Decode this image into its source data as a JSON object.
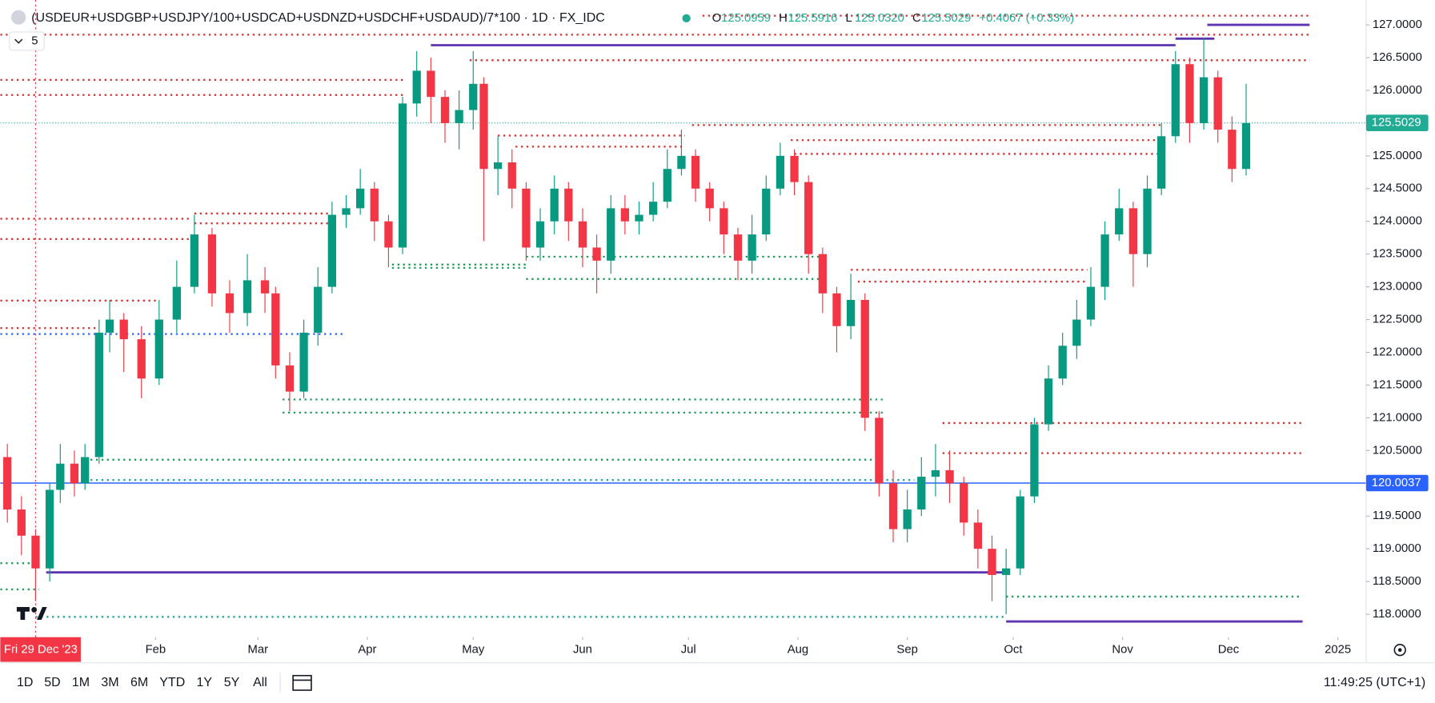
{
  "header": {
    "title": "(USDEUR+USDGBP+USDJPY/100+USDCAD+USDNZD+USDCHF+USDAUD)/7*100 · 1D · FX_IDC",
    "indicator": "5",
    "ohlc": [
      {
        "label": "O",
        "value": "125.0959"
      },
      {
        "label": "H",
        "value": "125.5916"
      },
      {
        "label": "L",
        "value": "125.0320"
      },
      {
        "label": "C",
        "value": "125.5029"
      }
    ],
    "change": "+0.4067 (+0.33%)"
  },
  "chart_data": {
    "type": "candlestick",
    "x": [
      -8,
      -4,
      0,
      4,
      7,
      11,
      14,
      18,
      21,
      25,
      30,
      35,
      40,
      45,
      50,
      55,
      60,
      65,
      68,
      72,
      76,
      80,
      84,
      88,
      92,
      96,
      100,
      104,
      108,
      112,
      116,
      120,
      124,
      127,
      131,
      135,
      139,
      143,
      147,
      151,
      155,
      159,
      163,
      167,
      171,
      175,
      179,
      183,
      187,
      191,
      195,
      199,
      203,
      207,
      211,
      215,
      219,
      223,
      227,
      231,
      235,
      239,
      243,
      247,
      251,
      255,
      259,
      263,
      267,
      271,
      275,
      279,
      283,
      287,
      291,
      295,
      299,
      303,
      307,
      311,
      315,
      319,
      323,
      327,
      331,
      335,
      339,
      343
    ],
    "open": [
      120.4,
      119.6,
      119.2,
      118.7,
      119.9,
      120.3,
      120.0,
      120.4,
      122.3,
      122.5,
      122.2,
      121.6,
      122.5,
      123.0,
      123.8,
      122.9,
      122.6,
      123.1,
      122.9,
      121.8,
      121.4,
      122.3,
      123.0,
      124.1,
      124.2,
      124.5,
      124.0,
      123.6,
      125.8,
      126.3,
      125.9,
      125.5,
      125.7,
      126.1,
      124.8,
      124.9,
      124.5,
      123.6,
      124.0,
      124.5,
      124.0,
      123.6,
      123.4,
      124.2,
      124.0,
      124.1,
      124.3,
      124.8,
      125.0,
      124.5,
      124.2,
      123.8,
      123.4,
      123.8,
      124.5,
      125.0,
      124.6,
      123.5,
      122.9,
      122.4,
      122.8,
      121.0,
      120.0,
      119.3,
      119.6,
      120.1,
      120.2,
      120.0,
      119.4,
      119.0,
      118.6,
      118.7,
      119.8,
      120.9,
      121.6,
      122.1,
      122.5,
      123.0,
      123.8,
      124.2,
      123.5,
      124.5,
      125.3,
      126.4,
      125.5,
      126.2,
      125.4,
      124.8
    ],
    "high": [
      120.6,
      119.8,
      119.3,
      120.0,
      120.6,
      120.5,
      120.6,
      122.5,
      122.8,
      122.6,
      122.4,
      122.8,
      123.4,
      124.1,
      123.9,
      123.1,
      123.5,
      123.3,
      123.0,
      122.0,
      122.5,
      123.3,
      124.3,
      124.4,
      124.8,
      124.6,
      124.1,
      125.9,
      126.6,
      126.5,
      126.0,
      126.0,
      126.6,
      126.2,
      125.3,
      125.1,
      124.6,
      124.2,
      124.7,
      124.6,
      124.2,
      123.8,
      124.4,
      124.4,
      124.3,
      124.6,
      125.1,
      125.4,
      125.1,
      124.6,
      124.3,
      123.9,
      124.1,
      124.7,
      125.2,
      125.1,
      124.7,
      123.6,
      123.0,
      123.2,
      122.9,
      121.1,
      120.2,
      119.9,
      120.4,
      120.6,
      120.5,
      120.1,
      119.6,
      119.2,
      119.0,
      119.9,
      121.0,
      121.8,
      122.3,
      122.8,
      123.3,
      124.0,
      124.5,
      124.3,
      124.7,
      125.5,
      126.6,
      126.5,
      126.8,
      126.3,
      125.6,
      126.1
    ],
    "low": [
      119.4,
      118.9,
      118.2,
      118.5,
      119.7,
      119.8,
      119.9,
      120.3,
      122.0,
      121.7,
      121.3,
      121.5,
      122.3,
      122.9,
      122.7,
      122.3,
      122.4,
      122.6,
      121.6,
      121.1,
      121.3,
      122.1,
      122.9,
      123.9,
      124.1,
      123.7,
      123.3,
      123.5,
      125.6,
      125.5,
      125.2,
      125.1,
      125.4,
      123.7,
      124.4,
      124.2,
      123.4,
      123.4,
      123.8,
      123.7,
      123.3,
      122.9,
      123.2,
      123.8,
      123.8,
      124.0,
      124.2,
      124.7,
      124.3,
      124.0,
      123.5,
      123.1,
      123.2,
      123.7,
      124.4,
      124.4,
      123.2,
      122.6,
      122.0,
      122.2,
      120.8,
      119.8,
      119.1,
      119.1,
      119.5,
      119.8,
      119.7,
      119.2,
      118.7,
      118.2,
      118.0,
      118.6,
      119.7,
      120.8,
      121.5,
      121.9,
      122.4,
      122.8,
      123.7,
      123.0,
      123.3,
      124.4,
      125.2,
      125.2,
      125.4,
      125.2,
      124.6,
      124.7
    ],
    "close": [
      119.6,
      119.2,
      118.7,
      119.9,
      120.3,
      120.0,
      120.4,
      122.3,
      122.5,
      122.2,
      121.6,
      122.5,
      123.0,
      123.8,
      122.9,
      122.6,
      123.1,
      122.9,
      121.8,
      121.4,
      122.3,
      123.0,
      124.1,
      124.2,
      124.5,
      124.0,
      123.6,
      125.8,
      126.3,
      125.9,
      125.5,
      125.7,
      126.1,
      124.8,
      124.9,
      124.5,
      123.6,
      124.0,
      124.5,
      124.0,
      123.6,
      123.4,
      124.2,
      124.0,
      124.1,
      124.3,
      124.8,
      125.0,
      124.5,
      124.2,
      123.8,
      123.4,
      123.8,
      124.5,
      125.0,
      124.6,
      123.5,
      122.9,
      122.4,
      122.8,
      121.0,
      120.0,
      119.3,
      119.6,
      120.1,
      120.2,
      120.0,
      119.4,
      119.0,
      118.6,
      118.7,
      119.8,
      120.9,
      121.6,
      122.1,
      122.5,
      123.0,
      123.8,
      124.2,
      123.5,
      124.5,
      125.3,
      126.4,
      125.5,
      126.2,
      125.4,
      124.8,
      125.5
    ],
    "up_color": "#089981",
    "down_color": "#f23645",
    "xlim": [
      -10,
      377
    ],
    "ylim": [
      117.65,
      127.38
    ],
    "xticks": [
      {
        "value": 34,
        "label": "Feb"
      },
      {
        "value": 63,
        "label": "Mar"
      },
      {
        "value": 94,
        "label": "Apr"
      },
      {
        "value": 124,
        "label": "May"
      },
      {
        "value": 155,
        "label": "Jun"
      },
      {
        "value": 185,
        "label": "Jul"
      },
      {
        "value": 216,
        "label": "Aug"
      },
      {
        "value": 247,
        "label": "Sep"
      },
      {
        "value": 277,
        "label": "Oct"
      },
      {
        "value": 308,
        "label": "Nov"
      },
      {
        "value": 338,
        "label": "Dec"
      },
      {
        "value": 369,
        "label": "2025"
      }
    ],
    "yticks": [
      {
        "value": 118,
        "label": "118.0000"
      },
      {
        "value": 118.5,
        "label": "118.5000"
      },
      {
        "value": 119,
        "label": "119.0000"
      },
      {
        "value": 119.5,
        "label": "119.5000"
      },
      {
        "value": 120,
        "label": "120.0000"
      },
      {
        "value": 120.5,
        "label": "120.5000"
      },
      {
        "value": 121,
        "label": "121.0000"
      },
      {
        "value": 121.5,
        "label": "121.5000"
      },
      {
        "value": 122,
        "label": "122.0000"
      },
      {
        "value": 122.5,
        "label": "122.5000"
      },
      {
        "value": 123,
        "label": "123.0000"
      },
      {
        "value": 123.5,
        "label": "123.5000"
      },
      {
        "value": 124,
        "label": "124.0000"
      },
      {
        "value": 124.5,
        "label": "124.5000"
      },
      {
        "value": 125,
        "label": "125.0000"
      },
      {
        "value": 125.5,
        "label": "125.5000"
      },
      {
        "value": 126,
        "label": "126.0000"
      },
      {
        "value": 126.5,
        "label": "126.5000"
      },
      {
        "value": 127,
        "label": "127.0000"
      }
    ],
    "grid": false,
    "levels": [
      {
        "color": "#d32f2f",
        "style": "dotted",
        "lines": [
          [
            127.14,
            189,
            361
          ],
          [
            126.85,
            -10,
            361
          ],
          [
            126.46,
            123,
            361
          ],
          [
            126.16,
            -10,
            105
          ],
          [
            125.93,
            -10,
            105
          ],
          [
            125.47,
            186,
            319
          ],
          [
            125.31,
            131,
            184
          ],
          [
            125.24,
            214,
            319
          ],
          [
            125.14,
            136,
            184
          ],
          [
            125.03,
            215,
            319
          ],
          [
            124.12,
            45,
            83
          ],
          [
            124.04,
            -10,
            44
          ],
          [
            123.97,
            45,
            83
          ],
          [
            123.73,
            -10,
            44
          ],
          [
            123.26,
            231,
            298
          ],
          [
            123.08,
            233,
            298
          ],
          [
            122.79,
            -10,
            35
          ],
          [
            122.37,
            -10,
            18
          ],
          [
            120.92,
            257,
            359
          ],
          [
            120.46,
            257,
            359
          ]
        ]
      },
      {
        "color": "#1e9e5a",
        "style": "dotted",
        "lines": [
          [
            123.46,
            139,
            224
          ],
          [
            123.34,
            101,
            139
          ],
          [
            123.29,
            101,
            139
          ],
          [
            123.12,
            139,
            224
          ],
          [
            121.28,
            70,
            240
          ],
          [
            121.08,
            70,
            240
          ],
          [
            120.36,
            14,
            239
          ],
          [
            118.78,
            -10,
            1
          ],
          [
            118.38,
            -10,
            1
          ],
          [
            118.27,
            275,
            359
          ]
        ]
      },
      {
        "color": "#26a69a",
        "style": "dotted",
        "lines": [
          [
            120.05,
            14,
            249
          ],
          [
            117.96,
            0,
            275
          ]
        ]
      },
      {
        "color": "#2962ff",
        "style": "dotted",
        "lines": [
          [
            122.28,
            -10,
            87
          ]
        ]
      },
      {
        "color": "#5e35b1",
        "style": "solid",
        "lines": [
          [
            126.69,
            112,
            323
          ],
          [
            126.79,
            323,
            334
          ],
          [
            127.0,
            332,
            361
          ],
          [
            118.64,
            3,
            275
          ],
          [
            117.89,
            275,
            359
          ]
        ]
      }
    ],
    "price_lines": [
      {
        "value": 125.5029,
        "color": "#22ab94",
        "style": "dotted"
      },
      {
        "value": 120.0037,
        "color": "#2962ff",
        "style": "solid"
      }
    ],
    "crosshair": {
      "x": 0,
      "label": "Fri 29 Dec '23"
    }
  },
  "toolbar": {
    "ranges": [
      "1D",
      "5D",
      "1M",
      "3M",
      "6M",
      "YTD",
      "1Y",
      "5Y",
      "All"
    ],
    "time": "11:49:25 (UTC+1)"
  }
}
